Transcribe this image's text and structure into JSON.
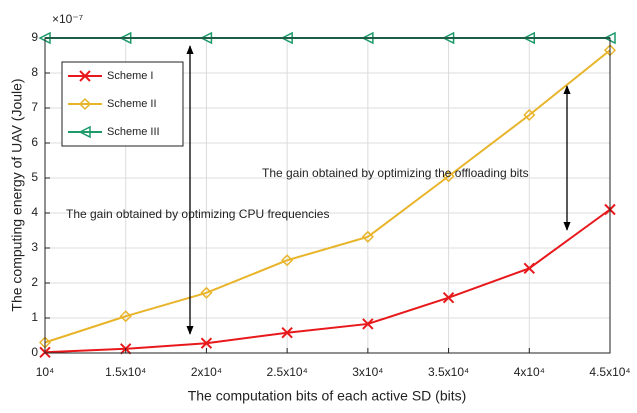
{
  "chart_data": {
    "type": "line",
    "xlabel": "The computation bits of each active SD (bits)",
    "ylabel": "The computing energy of UAV (Joule)",
    "y_multiplier": "×10⁻⁷",
    "x": [
      10000,
      15000,
      20000,
      25000,
      30000,
      35000,
      40000,
      45000
    ],
    "series": [
      {
        "name": "Scheme I",
        "color": "#e8191c",
        "marker": "x",
        "values": [
          0.02,
          0.12,
          0.28,
          0.58,
          0.83,
          1.58,
          2.42,
          4.1
        ]
      },
      {
        "name": "Scheme II",
        "color": "#e8b42a",
        "marker": "diamond",
        "values": [
          0.3,
          1.05,
          1.72,
          2.65,
          3.32,
          5.05,
          6.8,
          8.65
        ]
      },
      {
        "name": "Scheme III",
        "color": "#1c9a6a",
        "marker": "triangle-left",
        "values": [
          9,
          9,
          9,
          9,
          9,
          9,
          9,
          9
        ]
      }
    ],
    "xlim": [
      10000,
      45000
    ],
    "xticks": [
      {
        "value": 10000,
        "label": "10⁴"
      },
      {
        "value": 15000,
        "label": "1.5x10⁴"
      },
      {
        "value": 20000,
        "label": "2x10⁴"
      },
      {
        "value": 25000,
        "label": "2.5x10⁴"
      },
      {
        "value": 30000,
        "label": "3x10⁴"
      },
      {
        "value": 35000,
        "label": "3.5x10⁴"
      },
      {
        "value": 40000,
        "label": "4x10⁴"
      },
      {
        "value": 45000,
        "label": "4.5x10⁴"
      }
    ],
    "ylim": [
      0,
      9
    ],
    "yticks": [
      0,
      1,
      2,
      3,
      4,
      5,
      6,
      7,
      8,
      9
    ],
    "grid": true,
    "legend": "upper left",
    "annotations": [
      "The gain obtained by optimizing CPU frequencies",
      "The gain obtained by optimizing the offloading bits"
    ]
  }
}
